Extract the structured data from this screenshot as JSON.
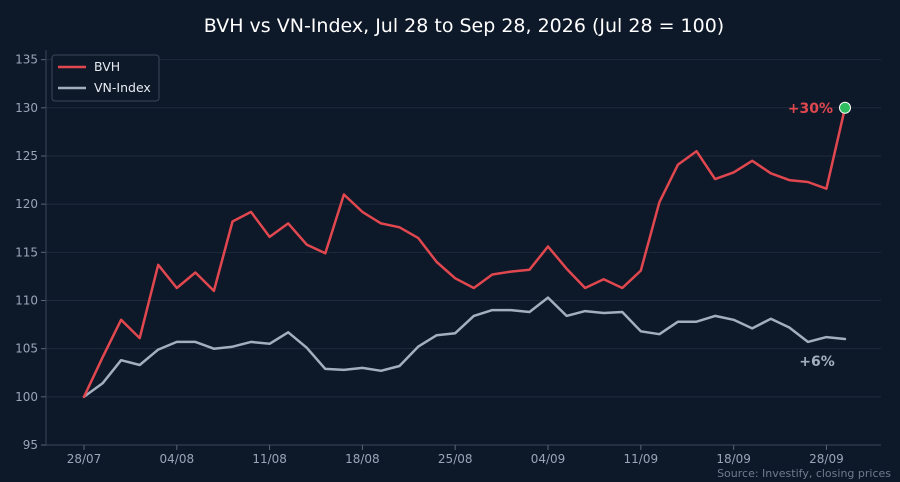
{
  "chart_data": {
    "type": "line",
    "title": "BVH vs VN-Index, Jul 28 to Sep 28, 2026 (Jul 28 = 100)",
    "source": "Source: Investify, closing prices",
    "ylim": [
      95,
      136
    ],
    "yticks": [
      95,
      100,
      105,
      110,
      115,
      120,
      125,
      130,
      135
    ],
    "xticks": [
      {
        "i": 0,
        "label": "28/07"
      },
      {
        "i": 5,
        "label": "04/08"
      },
      {
        "i": 10,
        "label": "11/08"
      },
      {
        "i": 15,
        "label": "18/08"
      },
      {
        "i": 20,
        "label": "25/08"
      },
      {
        "i": 25,
        "label": "04/09"
      },
      {
        "i": 30,
        "label": "11/09"
      },
      {
        "i": 35,
        "label": "18/09"
      },
      {
        "i": 40,
        "label": "28/09"
      }
    ],
    "grid": true,
    "legend_position": "top-left",
    "series": [
      {
        "name": "BVH",
        "color": "#e0474f",
        "values": [
          100.0,
          104.1,
          108.0,
          106.1,
          113.7,
          111.3,
          112.9,
          111.0,
          118.2,
          119.2,
          116.6,
          118.0,
          115.8,
          114.9,
          121.0,
          119.2,
          118.0,
          117.6,
          116.5,
          114.0,
          112.3,
          111.3,
          112.7,
          113.0,
          113.2,
          115.6,
          113.3,
          111.3,
          112.2,
          111.3,
          113.1,
          120.2,
          124.1,
          125.5,
          122.6,
          123.3,
          124.5,
          123.2,
          122.5,
          122.3,
          121.6,
          130.0
        ]
      },
      {
        "name": "VN-Index",
        "color": "#a3afbf",
        "values": [
          100.0,
          101.4,
          103.8,
          103.3,
          104.9,
          105.7,
          105.7,
          105.0,
          105.2,
          105.7,
          105.5,
          106.7,
          105.1,
          102.9,
          102.8,
          103.0,
          102.7,
          103.2,
          105.2,
          106.4,
          106.6,
          108.4,
          109.0,
          109.0,
          108.8,
          110.3,
          108.4,
          108.9,
          108.7,
          108.8,
          106.8,
          106.5,
          107.8,
          107.8,
          108.4,
          108.0,
          107.1,
          108.1,
          107.2,
          105.7,
          106.2,
          106.0
        ]
      }
    ],
    "annotations": [
      {
        "series": 0,
        "text": "+30%",
        "color": "#e0474f"
      },
      {
        "series": 1,
        "text": "+6%",
        "color": "#a3afbf"
      }
    ],
    "endpoint_marker_color": "#2ebd5f"
  }
}
